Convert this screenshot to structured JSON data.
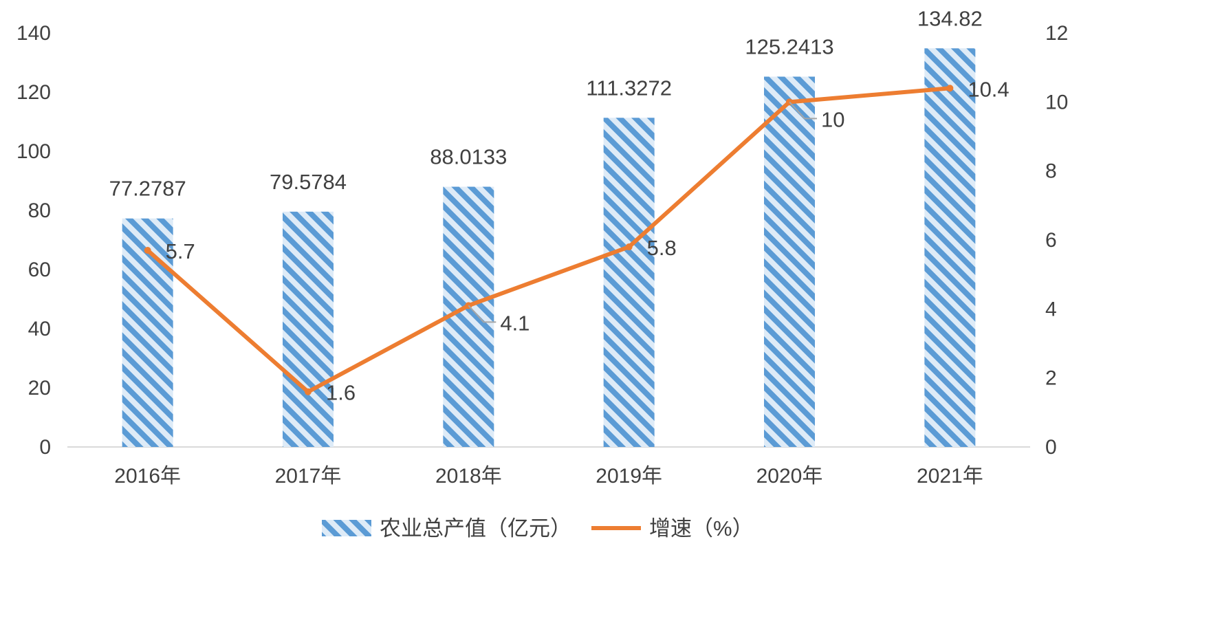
{
  "chart_data": {
    "type": "bar",
    "categories": [
      "2016年",
      "2017年",
      "2018年",
      "2019年",
      "2020年",
      "2021年"
    ],
    "series": [
      {
        "name": "农业总产值（亿元）",
        "type": "bar",
        "axis": "left",
        "values": [
          77.2787,
          79.5784,
          88.0133,
          111.3272,
          125.2413,
          134.82
        ],
        "labels": [
          "77.2787",
          "79.5784",
          "88.0133",
          "111.3272",
          "125.2413",
          "134.82"
        ],
        "pattern": "diagonal-stripes",
        "color": "#5B9BD5",
        "light_color": "#DEEBF7"
      },
      {
        "name": "增速（%）",
        "type": "line",
        "axis": "right",
        "values": [
          5.7,
          1.6,
          4.1,
          5.8,
          10,
          10.4
        ],
        "labels": [
          "5.7",
          "1.6",
          "4.1",
          "5.8",
          "10",
          "10.4"
        ],
        "color": "#ED7D31"
      }
    ],
    "y_left": {
      "range": [
        0,
        140
      ],
      "ticks": [
        "0",
        "20",
        "40",
        "60",
        "80",
        "100",
        "120",
        "140"
      ]
    },
    "y_right": {
      "range": [
        0,
        12
      ],
      "ticks": [
        "0",
        "2",
        "4",
        "6",
        "8",
        "10",
        "12"
      ]
    },
    "grid": false,
    "legend_position": "bottom"
  }
}
